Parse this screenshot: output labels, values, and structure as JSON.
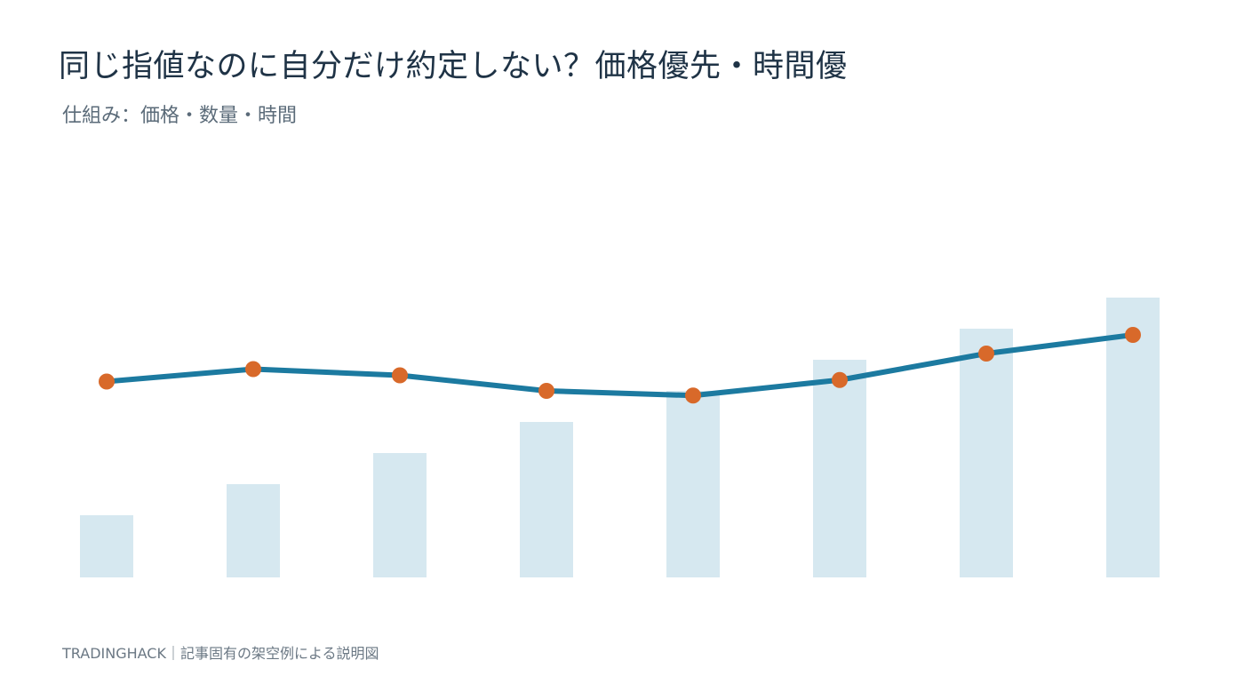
{
  "header": {
    "title": "同じ指値なのに自分だけ約定しない？価格優先・時間優",
    "subtitle": "仕組み：価格・数量・時間"
  },
  "footer": {
    "credit": "TRADINGHACK｜記事固有の架空例による説明図"
  },
  "colors": {
    "title": "#1f3346",
    "subtitle": "#5b6b79",
    "footer": "#6b7884",
    "bar": "#d6e8f0",
    "line": "#1c7aa0",
    "marker": "#d8692a"
  },
  "chart_data": {
    "type": "bar+line",
    "title": "",
    "xlabel": "",
    "ylabel": "",
    "x": [
      1,
      2,
      3,
      4,
      5,
      6,
      7,
      8
    ],
    "series": [
      {
        "type": "bar",
        "values": [
          2,
          3,
          4,
          5,
          6,
          7,
          8,
          9
        ]
      },
      {
        "type": "line",
        "values": [
          6.3,
          6.7,
          6.5,
          6.0,
          5.85,
          6.35,
          7.2,
          7.8
        ]
      }
    ],
    "ylim": [
      0,
      11
    ],
    "grid": false,
    "axes_visible": false
  }
}
